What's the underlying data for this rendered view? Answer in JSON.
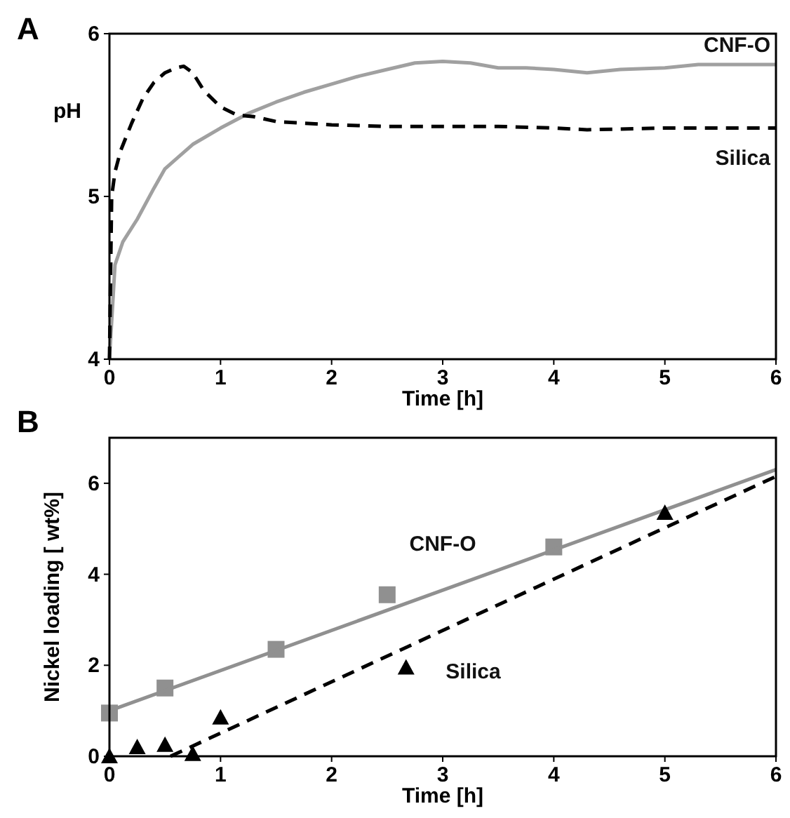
{
  "chart_data": [
    {
      "type": "line",
      "title": "A",
      "xlabel": "Time [h]",
      "ylabel": "pH",
      "xlim": [
        0,
        6
      ],
      "ylim": [
        4,
        6
      ],
      "xticks": [
        0,
        1,
        2,
        3,
        4,
        5,
        6
      ],
      "yticks": [
        4,
        5,
        6
      ],
      "grid": false,
      "series": [
        {
          "name": "CNF-O",
          "color": "#a0a0a0",
          "line_style": "solid",
          "x": [
            0,
            0.05,
            0.12,
            0.25,
            0.4,
            0.5,
            0.75,
            1.0,
            1.25,
            1.5,
            1.75,
            2.0,
            2.25,
            2.5,
            2.75,
            3.0,
            3.25,
            3.5,
            3.75,
            4.0,
            4.3,
            4.6,
            5.0,
            5.3,
            5.6,
            6.0
          ],
          "values": [
            4.0,
            4.58,
            4.72,
            4.86,
            5.05,
            5.17,
            5.32,
            5.42,
            5.51,
            5.58,
            5.64,
            5.69,
            5.74,
            5.78,
            5.82,
            5.83,
            5.82,
            5.79,
            5.79,
            5.78,
            5.76,
            5.78,
            5.79,
            5.81,
            5.81,
            5.81
          ]
        },
        {
          "name": "Silica",
          "color": "#000000",
          "line_style": "dashed",
          "x": [
            0,
            0.02,
            0.05,
            0.1,
            0.2,
            0.3,
            0.4,
            0.5,
            0.6,
            0.67,
            0.75,
            0.85,
            1.0,
            1.15,
            1.3,
            1.5,
            2.0,
            2.5,
            3.0,
            3.5,
            4.0,
            4.3,
            5.0,
            6.0
          ],
          "values": [
            4.0,
            5.0,
            5.15,
            5.28,
            5.45,
            5.6,
            5.7,
            5.76,
            5.79,
            5.8,
            5.76,
            5.65,
            5.55,
            5.5,
            5.49,
            5.46,
            5.44,
            5.43,
            5.43,
            5.43,
            5.42,
            5.41,
            5.42,
            5.42
          ]
        }
      ]
    },
    {
      "type": "scatter",
      "title": "B",
      "xlabel": "Time [h]",
      "ylabel": "Nickel loading [ wt%]",
      "xlim": [
        0,
        6
      ],
      "ylim": [
        0,
        7
      ],
      "xticks": [
        0,
        1,
        2,
        3,
        4,
        5,
        6
      ],
      "yticks": [
        0,
        2,
        4,
        6
      ],
      "grid": false,
      "series": [
        {
          "color": "#909090",
          "marker": "square",
          "x": [
            0,
            0.5,
            1.5,
            2.5,
            4
          ],
          "values": [
            0.95,
            1.5,
            2.35,
            3.55,
            4.6
          ]
        },
        {
          "type": "line",
          "name": "CNF-O",
          "color": "#909090",
          "line_style": "solid",
          "marker": "none",
          "x": [
            0,
            6
          ],
          "values": [
            1.0,
            6.3
          ]
        },
        {
          "color": "#000000",
          "marker": "triangle",
          "x": [
            0,
            0.25,
            0.5,
            0.75,
            1,
            2.67,
            5
          ],
          "values": [
            0,
            0.2,
            0.25,
            0.05,
            0.85,
            1.95,
            5.35
          ]
        },
        {
          "type": "line",
          "name": "Silica",
          "color": "#000000",
          "line_style": "dashed",
          "marker": "none",
          "x": [
            0.55,
            6
          ],
          "values": [
            0,
            6.15
          ]
        }
      ]
    }
  ]
}
